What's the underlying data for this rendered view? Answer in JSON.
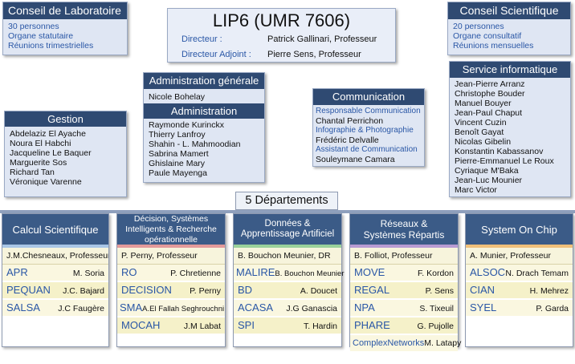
{
  "conseil_labo": {
    "title": "Conseil de Laboratoire",
    "lines": [
      "30 personnes",
      "Organe statutaire",
      "Réunions trimestrielles"
    ]
  },
  "lip6": {
    "title": "LIP6 (UMR 7606)",
    "directeur_label": "Directeur :",
    "directeur_value": "Patrick Gallinari, Professeur",
    "adjoint_label": "Directeur Adjoint :",
    "adjoint_value": "Pierre Sens, Professeur"
  },
  "conseil_sci": {
    "title": "Conseil Scientifique",
    "lines": [
      "20 personnes",
      "Organe consultatif",
      "Réunions mensuelles"
    ]
  },
  "admin_generale": {
    "title": "Administration générale",
    "name": "Nicole Bohelay"
  },
  "administration": {
    "title": "Administration",
    "names": [
      "Raymonde Kurinckx",
      "Thierry Lanfroy",
      "Shahin - L. Mahmoodian",
      "Sabrina Mamert",
      "Ghislaine Mary",
      "Paule Mayenga"
    ]
  },
  "gestion": {
    "title": "Gestion",
    "names": [
      "Abdelaziz El Ayache",
      "Noura El Habchi",
      "Jacqueline Le Baquer",
      "Marguerite Sos",
      "Richard Tan",
      "Véronique Varenne"
    ]
  },
  "communication": {
    "title": "Communication",
    "roles": [
      {
        "role": "Responsable Communication",
        "name": "Chantal Perrichon"
      },
      {
        "role": "Infographie & Photographie",
        "name": "Frédéric Delvalle"
      },
      {
        "role": "Assistant de Communication",
        "name": "Souleymane Camara"
      }
    ]
  },
  "service_info": {
    "title": "Service informatique",
    "names": [
      "Jean-Pierre Arranz",
      "Christophe Bouder",
      "Manuel Bouyer",
      "Jean-Paul Chaput",
      "Vincent Cuzin",
      "Benoît Gayat",
      "Nicolas Gibelin",
      "Konstantin Kabassanov",
      "Pierre-Emmanuel Le Roux",
      "Cyriaque M'Baka",
      "Jean-Luc Mounier",
      "Marc Victor"
    ]
  },
  "departments_title": "5 Départements",
  "departments": [
    {
      "title": "Calcul Scientifique",
      "stripe": "#a9c6e6",
      "head": "J.M.Chesneaux, Professeur",
      "teams": [
        {
          "name": "APR",
          "leader": "M.  Soria"
        },
        {
          "name": "PEQUAN",
          "leader": "J.C. Bajard"
        },
        {
          "name": "SALSA",
          "leader": "J.C Faugère"
        }
      ]
    },
    {
      "title": "Décision, Systèmes Intelligents & Recherche opérationnelle",
      "stripe": "#e39a9a",
      "head": "P. Perny, Professeur",
      "teams": [
        {
          "name": "RO",
          "leader": "P. Chretienne"
        },
        {
          "name": "DECISION",
          "leader": "P. Perny"
        },
        {
          "name": "SMA",
          "leader": "A.El Fallah Seghrouchni"
        },
        {
          "name": "MOCAH",
          "leader": "J.M Labat"
        }
      ]
    },
    {
      "title": "Données & Apprentissage Artificiel",
      "stripe": "#9ad19a",
      "head": "B. Bouchon Meunier, DR",
      "teams": [
        {
          "name": "MALIRE",
          "leader": "B. Bouchon Meunier"
        },
        {
          "name": "BD",
          "leader": "A. Doucet"
        },
        {
          "name": "ACASA",
          "leader": "J.G Ganascia"
        },
        {
          "name": "SPI",
          "leader": "T. Hardin"
        }
      ]
    },
    {
      "title": "Réseaux & Systèmes Répartis",
      "stripe": "#b89bd3",
      "head": "B. Folliot, Professeur",
      "teams": [
        {
          "name": "MOVE",
          "leader": "F. Kordon"
        },
        {
          "name": "REGAL",
          "leader": "P. Sens"
        },
        {
          "name": "NPA",
          "leader": "S. Tixeuil"
        },
        {
          "name": "PHARE",
          "leader": "G. Pujolle"
        },
        {
          "name": "ComplexNetworks",
          "leader": "M. Latapy"
        }
      ]
    },
    {
      "title": "System On Chip",
      "stripe": "#f0c07a",
      "head": "A. Munier, Professeur",
      "teams": [
        {
          "name": "ALSOC",
          "leader": "N. Drach Temam"
        },
        {
          "name": "CIAN",
          "leader": "H. Mehrez"
        },
        {
          "name": "SYEL",
          "leader": "P. Garda"
        }
      ]
    }
  ]
}
